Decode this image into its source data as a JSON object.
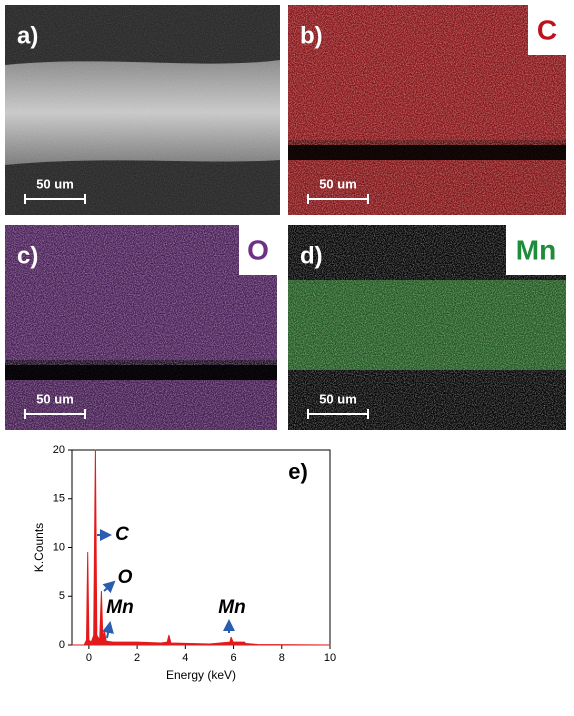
{
  "panels": [
    {
      "label": "a)",
      "scale_bar": "50 um"
    },
    {
      "label": "b)",
      "element": "C",
      "element_color": "#c0111a",
      "scale_bar": "50 um"
    },
    {
      "label": "c)",
      "element": "O",
      "element_color": "#6e2f86",
      "scale_bar": "50 um"
    },
    {
      "label": "d)",
      "element": "Mn",
      "element_color": "#1e8c3a",
      "scale_bar": "50 um"
    }
  ],
  "chart_data": {
    "type": "line",
    "panel_label": "e)",
    "x_label": "Energy (keV)",
    "y_label": "K.Counts",
    "color": "#e31a1c",
    "x": [
      -0.7,
      -0.2,
      -0.1,
      -0.05,
      0.0,
      0.1,
      0.2,
      0.27,
      0.33,
      0.45,
      0.52,
      0.58,
      0.64,
      0.72,
      1.0,
      2.0,
      3.0,
      3.25,
      3.32,
      3.4,
      5.0,
      5.85,
      5.9,
      5.98,
      6.45,
      6.5,
      7.0,
      10.0
    ],
    "values": [
      0,
      0,
      0.5,
      9.5,
      0.5,
      0.3,
      1,
      20,
      1,
      0.5,
      5.5,
      0.5,
      1.5,
      0.4,
      0.3,
      0.3,
      0.2,
      0.3,
      1,
      0.2,
      0.1,
      0.3,
      0.8,
      0.3,
      0.3,
      0.15,
      0.05,
      0
    ],
    "xlim": [
      -0.7,
      10
    ],
    "ylim": [
      0,
      20
    ],
    "xticks": [
      0,
      2,
      4,
      6,
      8,
      10
    ],
    "yticks": [
      0,
      5,
      10,
      15,
      20
    ],
    "annotations": [
      "C",
      "O",
      "Mn",
      "Mn"
    ]
  }
}
